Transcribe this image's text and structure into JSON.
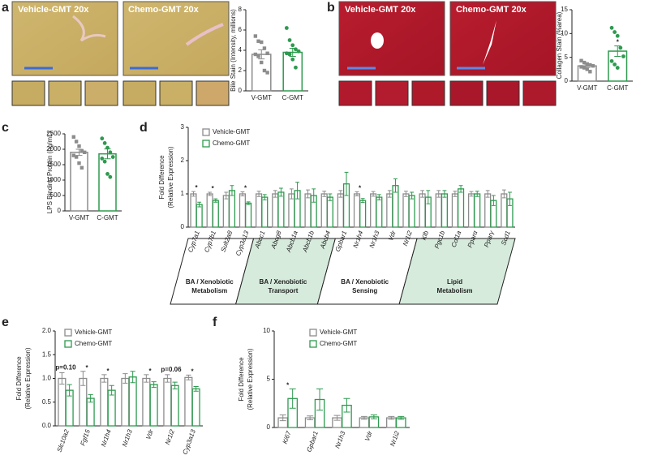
{
  "panels": {
    "letters": [
      "a",
      "b",
      "c",
      "d",
      "e",
      "f"
    ],
    "images": [
      "Vehicle-GMT 20x",
      "Chemo-GMT 20x",
      "Vehicle-GMT 20x",
      "Chemo-GMT 20x"
    ]
  },
  "chart_data": [
    {
      "type": "bar",
      "ylabel": "Bile Stain (Intensity, millions)",
      "categories": [
        "V-GMT",
        "C-GMT"
      ],
      "colors": [
        "#8c8c8c",
        "#2e9a4f"
      ],
      "values": [
        3.6,
        3.8
      ],
      "errors": [
        0.45,
        0.4
      ],
      "points": [
        [
          5.4,
          4.9,
          4.8,
          4.2,
          3.7,
          3.6,
          3.4,
          2.8,
          2.0,
          1.8
        ],
        [
          6.2,
          5.0,
          4.5,
          4.1,
          3.9,
          3.7,
          3.6,
          3.1,
          2.3
        ]
      ],
      "ylim": [
        0,
        8
      ],
      "yticks": [
        0,
        2,
        4,
        6,
        8
      ]
    },
    {
      "type": "bar",
      "ylabel": "Collagen Stain (%area)",
      "categories": [
        "V-GMT",
        "C-GMT"
      ],
      "colors": [
        "#8c8c8c",
        "#2e9a4f"
      ],
      "values": [
        3.2,
        6.3
      ],
      "errors": [
        0.35,
        1.1
      ],
      "points": [
        [
          4.3,
          3.9,
          3.6,
          3.4,
          3.2,
          3.0,
          2.8,
          2.5,
          2.0
        ],
        [
          11.2,
          10.3,
          9.5,
          7.0,
          5.2,
          4.2,
          3.5,
          2.8
        ]
      ],
      "annotations": [
        null,
        "*"
      ],
      "ylim": [
        0,
        15
      ],
      "yticks": [
        0,
        5,
        10,
        15
      ]
    },
    {
      "type": "bar",
      "ylabel": "LPS Binding Protein (ng/mL)",
      "categories": [
        "V-GMT",
        "C-GMT"
      ],
      "colors": [
        "#8c8c8c",
        "#2e9a4f"
      ],
      "values": [
        1900,
        1850
      ],
      "errors": [
        100,
        160
      ],
      "points": [
        [
          2400,
          2250,
          2100,
          1950,
          1900,
          1800,
          1750,
          1550,
          1400
        ],
        [
          2350,
          2200,
          2050,
          1900,
          1750,
          1700,
          1600,
          1200,
          1100
        ]
      ],
      "ylim": [
        0,
        2500
      ],
      "yticks": [
        0,
        500,
        1000,
        1500,
        2000,
        2500
      ]
    },
    {
      "type": "grouped_bar",
      "ylabel": [
        "Fold Difference",
        "(Relative Expression)"
      ],
      "categories": [
        "Cyp7a1",
        "Cyp7b1",
        "Sult2a8",
        "Cyp3a13",
        "Abcc1",
        "Abcg8",
        "Abcb1a",
        "Abcb1b",
        "Abcb4",
        "Gpbar1",
        "Nr1h4",
        "Nr1h3",
        "Vdr",
        "Nr1i2",
        "Klb",
        "Pgc1b",
        "Col1a",
        "Pparα",
        "Pparγ",
        "Scd1"
      ],
      "series": [
        {
          "name": "Vehicle-GMT",
          "color": "#8c8c8c",
          "values": [
            1.0,
            1.0,
            0.95,
            1.0,
            1.0,
            1.0,
            1.0,
            1.0,
            1.0,
            1.0,
            1.0,
            1.0,
            1.0,
            1.0,
            1.0,
            1.0,
            1.0,
            1.0,
            1.0,
            1.0
          ],
          "errors": [
            0.07,
            0.05,
            0.1,
            0.06,
            0.08,
            0.1,
            0.15,
            0.12,
            0.08,
            0.1,
            0.06,
            0.07,
            0.1,
            0.08,
            0.1,
            0.1,
            0.08,
            0.07,
            0.1,
            0.12
          ]
        },
        {
          "name": "Chemo-GMT",
          "color": "#2e9a4f",
          "values": [
            0.68,
            0.8,
            1.1,
            0.72,
            0.9,
            1.05,
            1.1,
            0.95,
            0.9,
            1.3,
            0.8,
            0.9,
            1.25,
            0.95,
            0.9,
            1.0,
            1.15,
            1.0,
            0.8,
            0.85
          ],
          "errors": [
            0.07,
            0.05,
            0.15,
            0.04,
            0.08,
            0.12,
            0.25,
            0.2,
            0.1,
            0.35,
            0.06,
            0.08,
            0.2,
            0.1,
            0.2,
            0.1,
            0.1,
            0.08,
            0.15,
            0.2
          ]
        }
      ],
      "annotations": [
        "*",
        "*",
        null,
        "*",
        null,
        null,
        null,
        null,
        null,
        null,
        "*",
        null,
        null,
        null,
        null,
        null,
        null,
        null,
        null,
        null
      ],
      "groups": [
        {
          "label": [
            "BA / Xenobiotic",
            "Metabolism"
          ],
          "fill": "#ffffff",
          "members": [
            "Cyp7a1",
            "Cyp7b1",
            "Sult2a8",
            "Cyp3a13"
          ]
        },
        {
          "label": [
            "BA / Xenobiotic",
            "Transport"
          ],
          "fill": "#d6ebdc",
          "members": [
            "Abcc1",
            "Abcg8",
            "Abcb1a",
            "Abcb1b",
            "Abcb4"
          ]
        },
        {
          "label": [
            "BA / Xenobiotic",
            "Sensing"
          ],
          "fill": "#ffffff",
          "members": [
            "Gpbar1",
            "Nr1h4",
            "Nr1h3",
            "Vdr",
            "Nr1i2"
          ]
        },
        {
          "label": [
            "Lipid",
            "Metabolism"
          ],
          "fill": "#d6ebdc",
          "members": [
            "Klb",
            "Pgc1b",
            "Col1a",
            "Pparα",
            "Pparγ",
            "Scd1"
          ]
        }
      ],
      "ylim": [
        0,
        3
      ],
      "yticks": [
        0,
        1,
        2,
        3
      ]
    },
    {
      "type": "grouped_bar",
      "ylabel": [
        "Fold Difference",
        "(Relative Expression)"
      ],
      "categories": [
        "Slc10a2",
        "Fgf15",
        "Nr1h4",
        "Nr1h3",
        "Vdr",
        "Nr1i2",
        "Cyp3a13"
      ],
      "series": [
        {
          "name": "Vehicle-GMT",
          "color": "#8c8c8c",
          "values": [
            1.0,
            1.0,
            1.0,
            1.0,
            1.0,
            1.0,
            1.02
          ],
          "errors": [
            0.12,
            0.15,
            0.08,
            0.1,
            0.08,
            0.08,
            0.05
          ]
        },
        {
          "name": "Chemo-GMT",
          "color": "#2e9a4f",
          "values": [
            0.75,
            0.58,
            0.75,
            1.03,
            0.87,
            0.85,
            0.78
          ],
          "errors": [
            0.12,
            0.08,
            0.1,
            0.12,
            0.06,
            0.07,
            0.05
          ]
        }
      ],
      "annotations": [
        "p=0.10",
        "*",
        "*",
        null,
        "*",
        "p=0.06",
        "*"
      ],
      "ylim": [
        0,
        2
      ],
      "yticks": [
        {
          "value": 0,
          "label": "0.0"
        },
        {
          "value": 0.5,
          "label": "0.5"
        },
        {
          "value": 1,
          "label": "1.0"
        },
        {
          "value": 1.5,
          "label": "1.5"
        },
        {
          "value": 2,
          "label": "2.0"
        }
      ]
    },
    {
      "type": "grouped_bar",
      "ylabel": [
        "Fold Difference",
        "(Relative Expression)"
      ],
      "categories": [
        "Ki67",
        "Gpbar1",
        "Nr1h3",
        "Vdr",
        "Nr1i2"
      ],
      "series": [
        {
          "name": "Vehicle-GMT",
          "color": "#8c8c8c",
          "values": [
            1,
            1,
            1,
            1,
            1
          ],
          "errors": [
            0.3,
            0.2,
            0.25,
            0.15,
            0.15
          ]
        },
        {
          "name": "Chemo-GMT",
          "color": "#2e9a4f",
          "values": [
            3.0,
            2.9,
            2.3,
            1.1,
            1.0
          ],
          "errors": [
            1.0,
            1.1,
            0.7,
            0.2,
            0.15
          ]
        }
      ],
      "annotations": [
        "*",
        null,
        null,
        null,
        null
      ],
      "ylim": [
        0,
        10
      ],
      "yticks": [
        0,
        5,
        10
      ]
    }
  ]
}
